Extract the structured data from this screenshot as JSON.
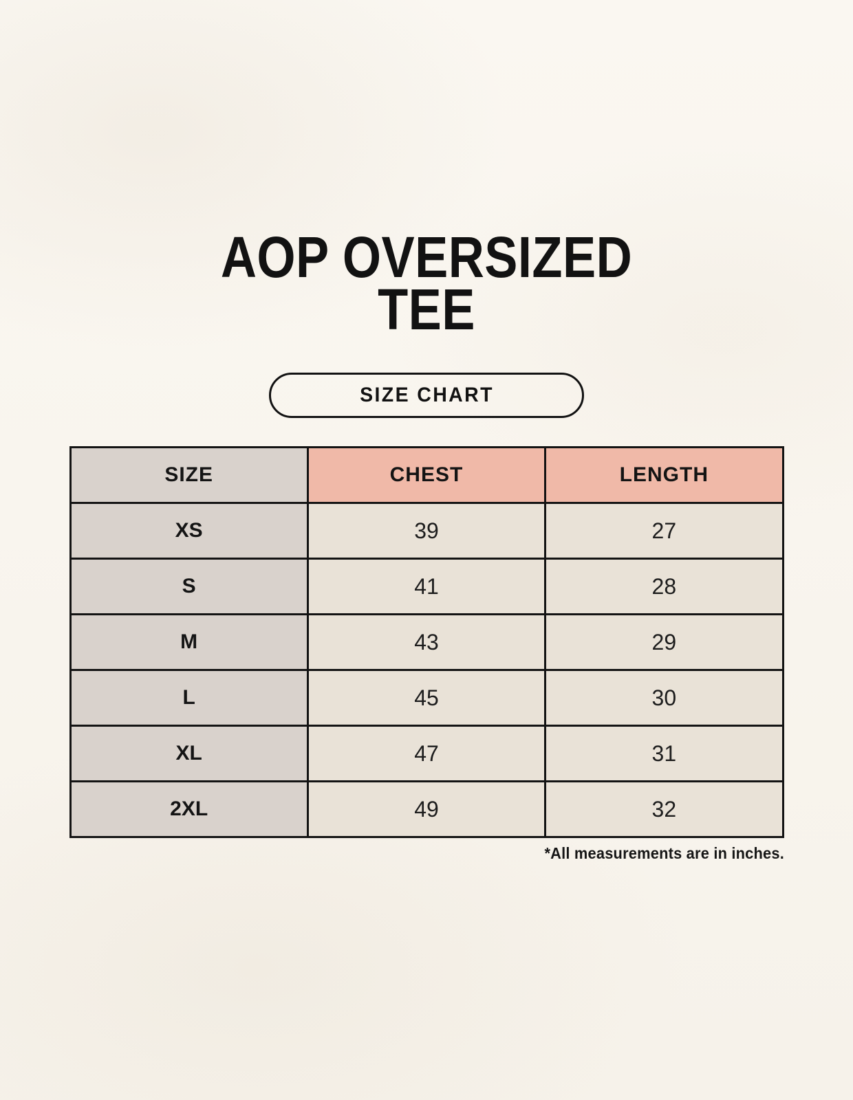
{
  "ui": {
    "title_line1": "AOP OVERSIZED",
    "title_line2": "TEE",
    "badge_label": "SIZE CHART",
    "footnote": "*All measurements are in inches."
  },
  "chart_data": {
    "type": "table",
    "title": "AOP OVERSIZED TEE",
    "columns": [
      "SIZE",
      "CHEST",
      "LENGTH"
    ],
    "rows": [
      [
        "XS",
        39,
        27
      ],
      [
        "S",
        41,
        28
      ],
      [
        "M",
        43,
        29
      ],
      [
        "L",
        45,
        30
      ],
      [
        "XL",
        47,
        31
      ],
      [
        "2XL",
        49,
        32
      ]
    ],
    "units_note": "*All measurements are in inches."
  },
  "colors": {
    "background": "#f9f6ef",
    "accent_header": "#f0b9a8",
    "size_column": "#d9d2cc",
    "value_cell": "#e9e2d7",
    "table_border": "#131313",
    "text": "#141414"
  }
}
